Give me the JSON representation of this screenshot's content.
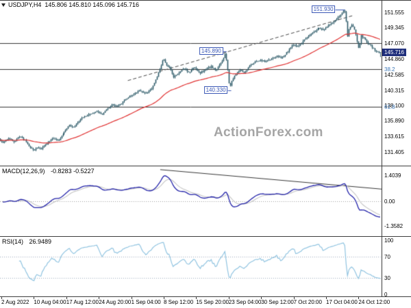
{
  "colors": {
    "candle": "#2a5866",
    "ma_line": "#e03131",
    "macd_line": "#2121a8",
    "signal_line": "#c4c4c4",
    "rsi_line": "#8fc3e0",
    "annotation": "#3a57b5",
    "price_tag_bg": "#1f2e7b",
    "price_tag_text": "#ffffff",
    "fib_label": "#3e78b8",
    "watermark": "#a5a5a5",
    "hline": "#333333",
    "trendline": "#444444"
  },
  "legend": {
    "symbol": "USDJPY,H4",
    "ohlc": "145.806 145.810 145.096 145.716"
  },
  "watermark": "ActionForex.com",
  "price_axis": {
    "current": "145.716",
    "fib_labels": [
      {
        "text": "38.2",
        "value": 143.37
      },
      {
        "text": "61.8",
        "value": 137.89
      }
    ]
  },
  "panels": {
    "macd": {
      "title": "MACD(12,26,9)",
      "values": "-0.8283 -0.5227"
    },
    "rsi": {
      "title": "RSI(14)",
      "values": "26.9489"
    }
  },
  "chart_data": [
    {
      "type": "candlestick",
      "title": "USDJPY H4",
      "ylim": [
        129.4,
        153.35
      ],
      "y_ticks": [
        "151.555",
        "149.345",
        "147.070",
        "144.860",
        "142.585",
        "140.315",
        "138.100",
        "135.890",
        "133.615",
        "131.405"
      ],
      "x_labels": [
        "2 Aug 2022",
        "10 Aug 04:00",
        "17 Aug 12:00",
        "24 Aug 20:00",
        "1 Sep 04:00",
        "8 Sep 12:00",
        "15 Sep 20:00",
        "23 Sep 04:00",
        "30 Sep 12:00",
        "7 Oct 20:00",
        "17 Oct 04:00",
        "24 Oct 12:00"
      ],
      "num_candles": 280,
      "last": {
        "open": 145.806,
        "high": 145.81,
        "low": 145.096,
        "close": 145.716
      },
      "anchors": [
        [
          0.0,
          133.2
        ],
        [
          0.012,
          132.7
        ],
        [
          0.025,
          133.4
        ],
        [
          0.04,
          132.9
        ],
        [
          0.055,
          133.6
        ],
        [
          0.068,
          133.0
        ],
        [
          0.08,
          132.1
        ],
        [
          0.092,
          131.55
        ],
        [
          0.1,
          132.1
        ],
        [
          0.11,
          131.75
        ],
        [
          0.125,
          132.6
        ],
        [
          0.14,
          133.25
        ],
        [
          0.155,
          133.0
        ],
        [
          0.17,
          134.1
        ],
        [
          0.183,
          135.2
        ],
        [
          0.198,
          135.0
        ],
        [
          0.212,
          136.0
        ],
        [
          0.228,
          136.6
        ],
        [
          0.243,
          136.9
        ],
        [
          0.258,
          137.35
        ],
        [
          0.27,
          136.75
        ],
        [
          0.283,
          137.5
        ],
        [
          0.297,
          138.3
        ],
        [
          0.31,
          137.9
        ],
        [
          0.325,
          138.6
        ],
        [
          0.34,
          139.3
        ],
        [
          0.357,
          139.95
        ],
        [
          0.372,
          140.25
        ],
        [
          0.386,
          139.8
        ],
        [
          0.4,
          140.6
        ],
        [
          0.412,
          141.9
        ],
        [
          0.422,
          143.4
        ],
        [
          0.43,
          144.85
        ],
        [
          0.438,
          144.0
        ],
        [
          0.448,
          143.5
        ],
        [
          0.457,
          142.2
        ],
        [
          0.47,
          142.7
        ],
        [
          0.483,
          143.45
        ],
        [
          0.497,
          142.9
        ],
        [
          0.512,
          143.6
        ],
        [
          0.527,
          142.75
        ],
        [
          0.541,
          143.3
        ],
        [
          0.556,
          143.75
        ],
        [
          0.57,
          143.2
        ],
        [
          0.585,
          144.4
        ],
        [
          0.594,
          145.75
        ],
        [
          0.6,
          143.2
        ],
        [
          0.605,
          140.55
        ],
        [
          0.612,
          141.9
        ],
        [
          0.622,
          142.6
        ],
        [
          0.633,
          143.3
        ],
        [
          0.644,
          142.85
        ],
        [
          0.658,
          143.8
        ],
        [
          0.672,
          144.4
        ],
        [
          0.686,
          144.65
        ],
        [
          0.7,
          144.45
        ],
        [
          0.714,
          144.85
        ],
        [
          0.728,
          145.25
        ],
        [
          0.742,
          145.0
        ],
        [
          0.756,
          145.9
        ],
        [
          0.77,
          146.85
        ],
        [
          0.783,
          146.6
        ],
        [
          0.797,
          147.4
        ],
        [
          0.81,
          148.15
        ],
        [
          0.824,
          148.65
        ],
        [
          0.838,
          149.25
        ],
        [
          0.852,
          149.0
        ],
        [
          0.865,
          149.7
        ],
        [
          0.878,
          150.1
        ],
        [
          0.891,
          150.9
        ],
        [
          0.904,
          151.75
        ],
        [
          0.909,
          151.5
        ],
        [
          0.914,
          148.0
        ],
        [
          0.919,
          149.4
        ],
        [
          0.926,
          149.8
        ],
        [
          0.933,
          149.0
        ],
        [
          0.94,
          147.2
        ],
        [
          0.944,
          146.1
        ],
        [
          0.95,
          148.2
        ],
        [
          0.957,
          147.9
        ],
        [
          0.964,
          147.3
        ],
        [
          0.972,
          146.9
        ],
        [
          0.981,
          146.3
        ],
        [
          0.99,
          145.9
        ],
        [
          1.0,
          145.72
        ]
      ],
      "overlays": {
        "ema_period": 55,
        "hlines": [
          147.07,
          143.37,
          137.89
        ],
        "trendline": {
          "from": [
            0.335,
            141.7
          ],
          "to": [
            0.925,
            151.1
          ],
          "style": "dashed"
        },
        "annotations": [
          {
            "text": "151.930",
            "f": 0.904,
            "price": 151.93
          },
          {
            "text": "145.890",
            "f": 0.594,
            "price": 145.89
          },
          {
            "text": "140.330",
            "f": 0.606,
            "price": 140.33
          }
        ]
      }
    },
    {
      "type": "line",
      "name": "MACD(12,26,9)",
      "params": [
        12,
        26,
        9
      ],
      "current_values": [
        -0.8283,
        -0.5227
      ],
      "ylim": [
        -1.9,
        1.9
      ],
      "y_ticks": [
        {
          "text": "1.4039",
          "value": 1.4039
        },
        {
          "text": "0.00",
          "value": 0
        },
        {
          "text": "-1.3582",
          "value": -1.3582
        }
      ],
      "trendline": {
        "from": [
          0.42,
          1.72
        ],
        "to": [
          1.0,
          0.66
        ]
      }
    },
    {
      "type": "line",
      "name": "RSI(14)",
      "period": 14,
      "current_value": 26.9489,
      "ylim": [
        0,
        100
      ],
      "y_ticks": [
        100,
        70,
        30,
        0
      ],
      "guides": [
        70,
        30
      ]
    }
  ]
}
